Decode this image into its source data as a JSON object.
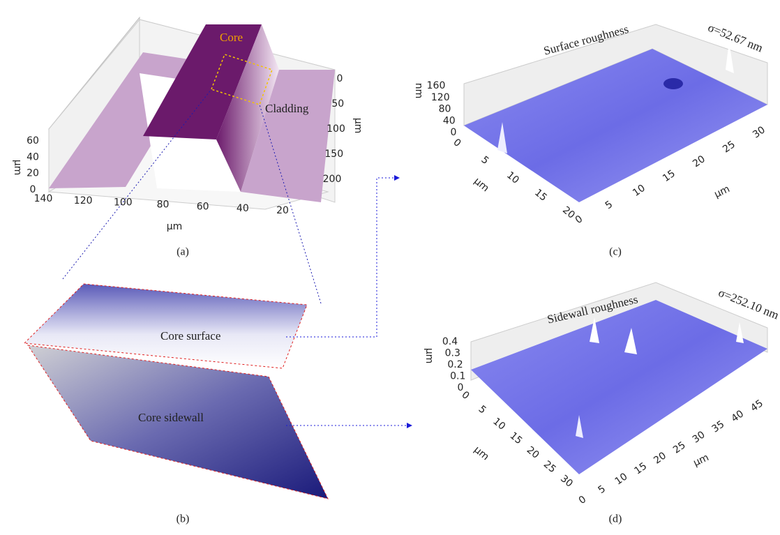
{
  "panels": {
    "a": {
      "caption": "(a)",
      "core_label": "Core",
      "cladding_label": "Cladding",
      "z_unit": "μm",
      "z_ticks": [
        "0",
        "20",
        "40",
        "60"
      ],
      "x_ticks": [
        "140",
        "120",
        "100",
        "80",
        "60",
        "40",
        "20"
      ],
      "x_unit": "μm",
      "y_ticks": [
        "0",
        "50",
        "100",
        "150",
        "200"
      ],
      "y_unit": "μm"
    },
    "b": {
      "caption": "(b)",
      "surface_label": "Core surface",
      "sidewall_label": "Core sidewall"
    },
    "c": {
      "caption": "(c)",
      "title": "Surface roughness",
      "sigma": "σ=52.67 nm",
      "z_unit": "nm",
      "z_ticks": [
        "0",
        "40",
        "80",
        "120",
        "160"
      ],
      "x_ticks": [
        "0",
        "5",
        "10",
        "15",
        "20",
        "25",
        "30"
      ],
      "x_unit": "μm",
      "y_ticks": [
        "0",
        "5",
        "10",
        "15",
        "20"
      ],
      "y_unit": "μm"
    },
    "d": {
      "caption": "(d)",
      "title": "Sidewall roughness",
      "sigma": "σ=252.10 nm",
      "z_unit": "μm",
      "z_ticks": [
        "0",
        "0.1",
        "0.2",
        "0.3",
        "0.4"
      ],
      "x_ticks": [
        "0",
        "5",
        "10",
        "15",
        "20",
        "25",
        "30",
        "35",
        "40",
        "45"
      ],
      "x_unit": "μm",
      "y_ticks": [
        "0",
        "5",
        "10",
        "15",
        "20",
        "25",
        "30"
      ],
      "y_unit": "μm"
    }
  }
}
